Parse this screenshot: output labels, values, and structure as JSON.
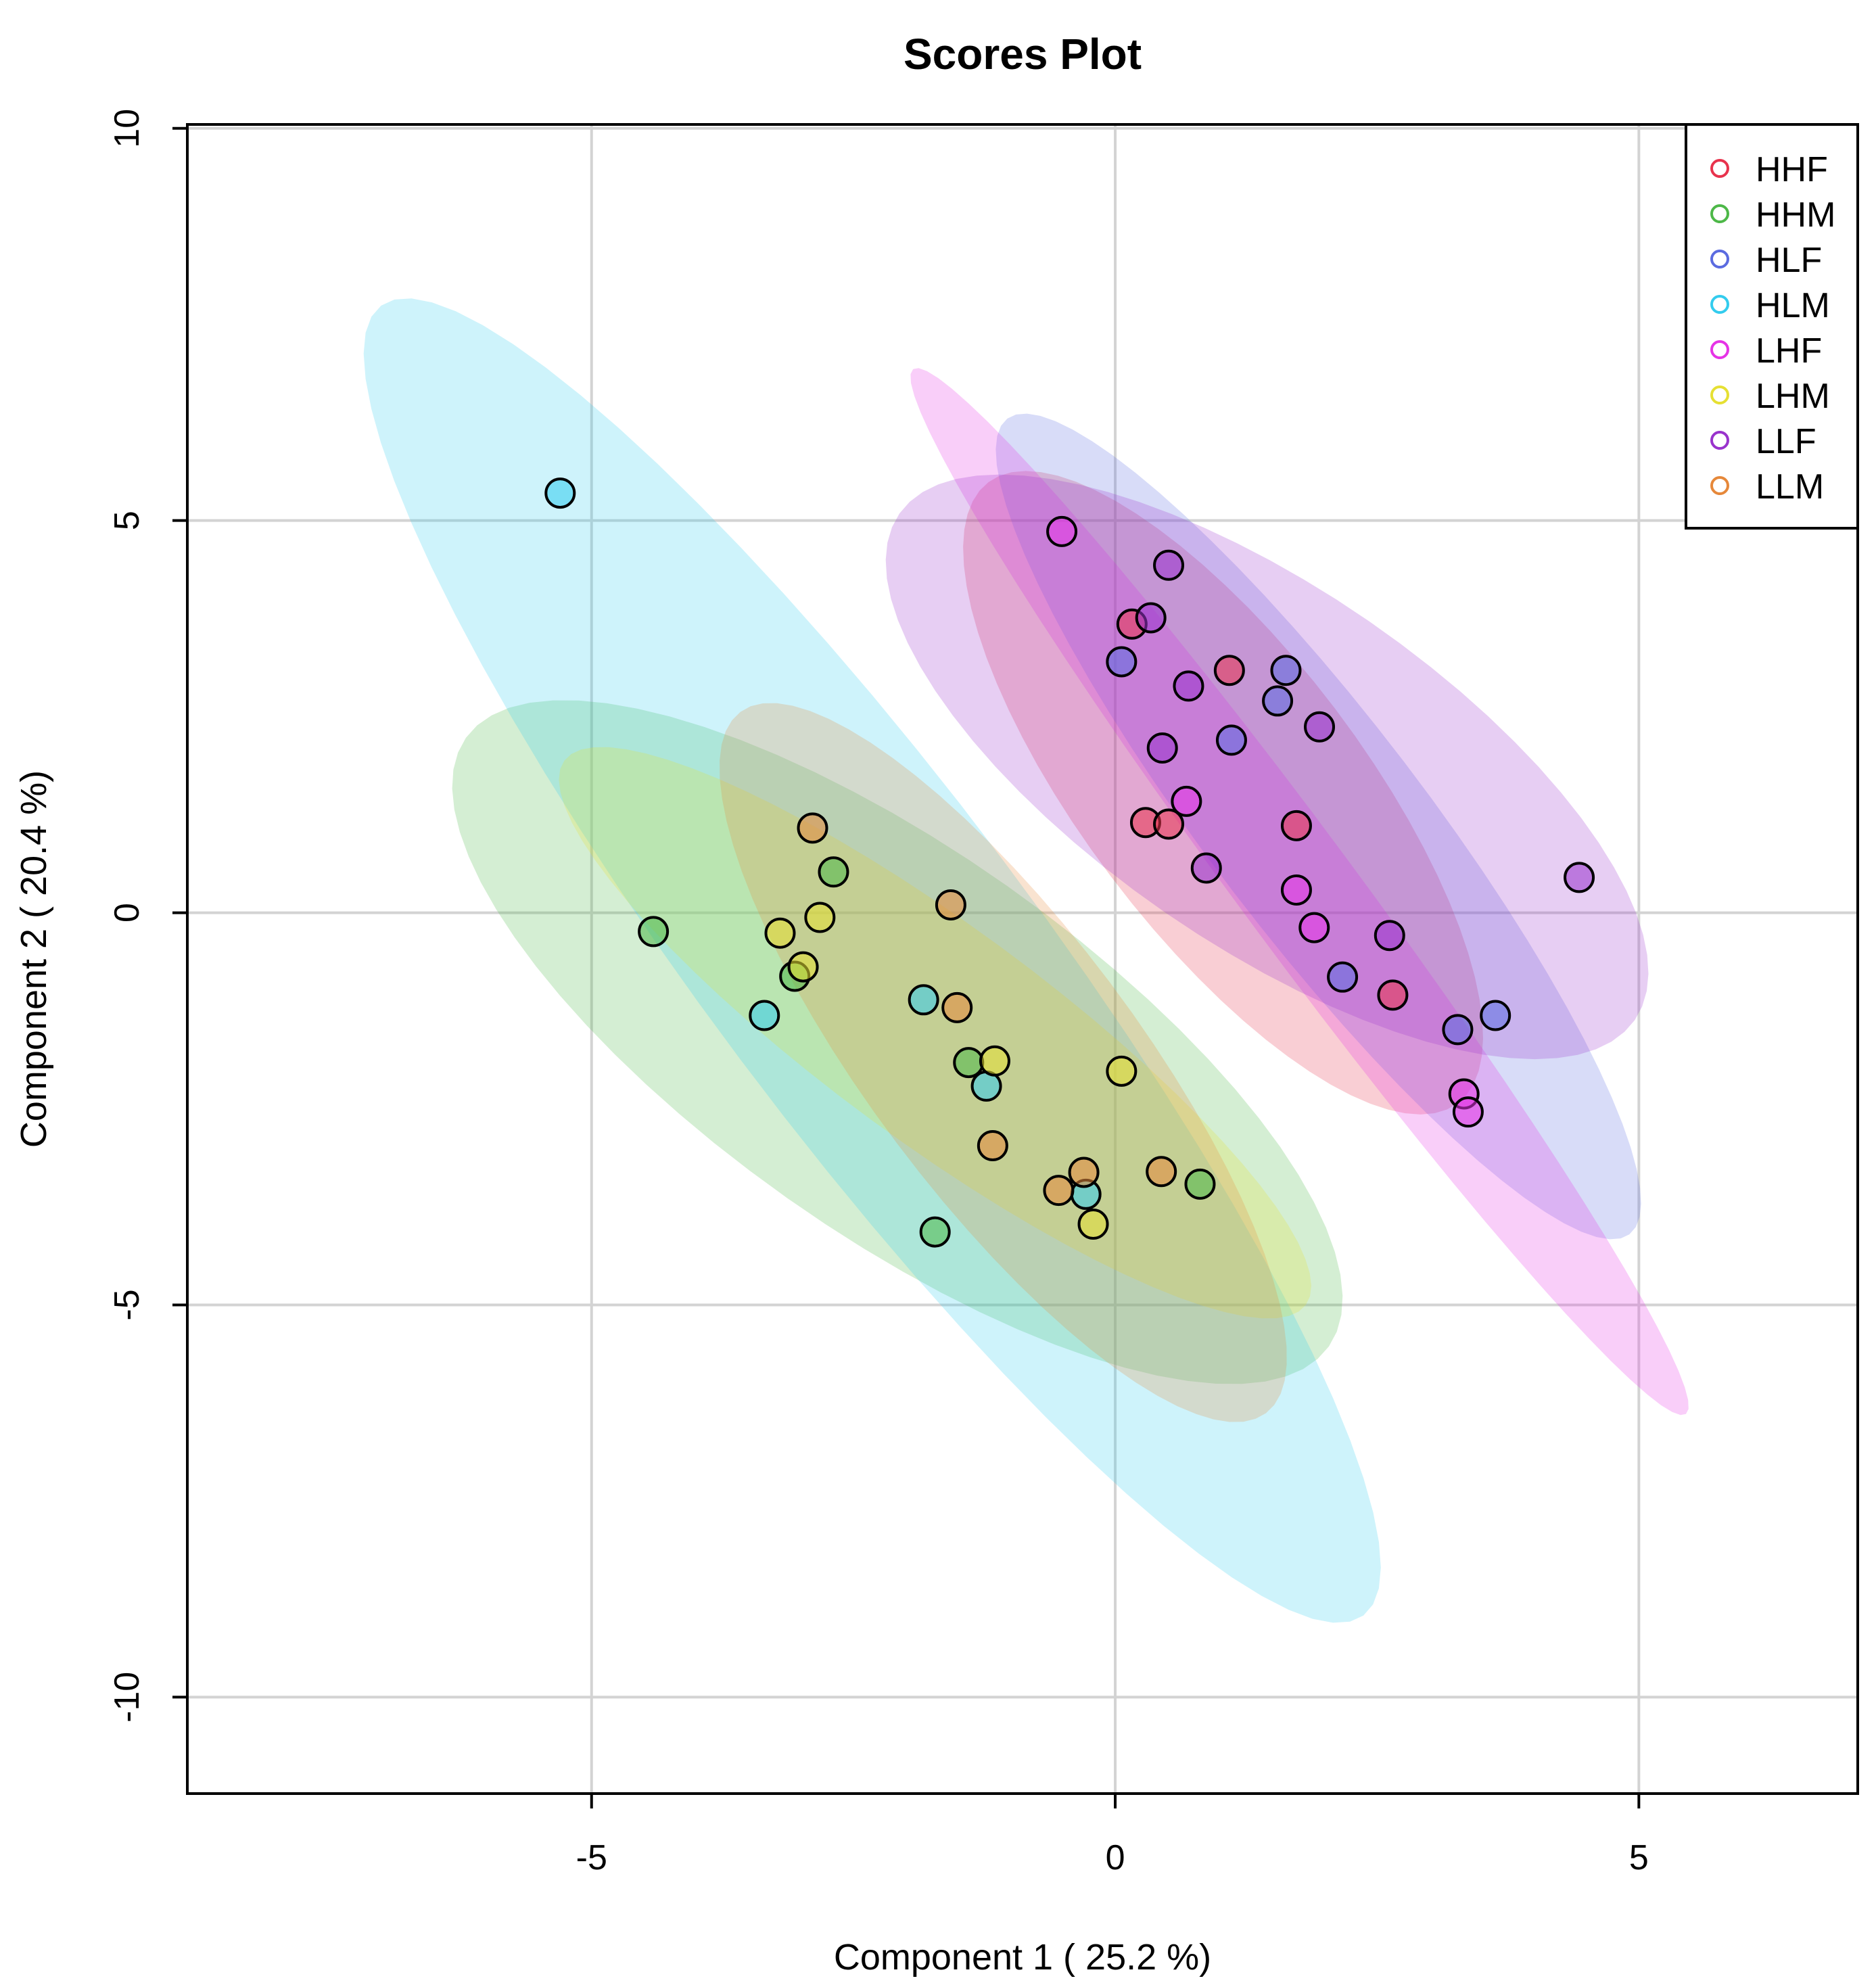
{
  "chart_data": {
    "type": "scatter",
    "title": "Scores Plot",
    "xlabel": "Component 1 ( 25.2 %)",
    "ylabel": "Component 2 ( 20.4 %)",
    "xlim": [
      -8.86,
      7.09
    ],
    "ylim": [
      -11.23,
      10.05
    ],
    "xticks": [
      -5,
      0,
      5
    ],
    "xtick_labels": [
      "-5",
      "0",
      "5"
    ],
    "yticks": [
      -10,
      -5,
      0,
      5,
      10
    ],
    "ytick_labels": [
      "-10",
      "-5",
      "0",
      "5",
      "10"
    ],
    "grid": true,
    "legend_position": "top-right",
    "series": [
      {
        "name": "HHF",
        "color": "#E8334D",
        "points": [
          [
            0.16,
            3.68
          ],
          [
            1.09,
            3.09
          ],
          [
            0.29,
            1.15
          ],
          [
            0.51,
            1.13
          ],
          [
            1.73,
            1.11
          ],
          [
            2.65,
            -1.05
          ]
        ],
        "ellipse": {
          "center": [
            1.03,
            1.53
          ],
          "a": [
            2.24,
            -3.96
          ],
          "b": [
            1.07,
            1.07
          ]
        }
      },
      {
        "name": "HHM",
        "color": "#4DB848",
        "points": [
          [
            -2.69,
            0.52
          ],
          [
            -4.41,
            -0.24
          ],
          [
            -3.06,
            -0.81
          ],
          [
            -1.4,
            -1.91
          ],
          [
            0.81,
            -3.46
          ],
          [
            -1.72,
            -4.07
          ]
        ],
        "ellipse": {
          "center": [
            -2.08,
            -1.65
          ],
          "a": [
            4.12,
            -3.88
          ],
          "b": [
            1.05,
            1.99
          ]
        }
      },
      {
        "name": "HLF",
        "color": "#5B6BE0",
        "points": [
          [
            0.06,
            3.2
          ],
          [
            1.63,
            3.09
          ],
          [
            1.55,
            2.7
          ],
          [
            1.11,
            2.2
          ],
          [
            2.17,
            -0.82
          ],
          [
            3.27,
            -1.49
          ],
          [
            3.63,
            -1.31
          ]
        ],
        "ellipse": {
          "center": [
            1.94,
            1.1
          ],
          "a": [
            2.97,
            -5.2
          ],
          "b": [
            0.82,
            0.82
          ]
        }
      },
      {
        "name": "HLM",
        "color": "#33CCEE",
        "points": [
          [
            -5.3,
            5.35
          ],
          [
            -3.35,
            -1.31
          ],
          [
            -1.83,
            -1.11
          ],
          [
            -1.23,
            -2.21
          ],
          [
            -0.28,
            -3.59
          ]
        ],
        "ellipse": {
          "center": [
            -2.32,
            -0.61
          ],
          "a": [
            4.69,
            -8.35
          ],
          "b": [
            1.26,
            1.26
          ]
        }
      },
      {
        "name": "LHF",
        "color": "#E633E6",
        "points": [
          [
            -0.51,
            4.86
          ],
          [
            0.68,
            1.42
          ],
          [
            1.73,
            0.29
          ],
          [
            1.9,
            -0.19
          ],
          [
            3.33,
            -2.31
          ],
          [
            3.37,
            -2.54
          ]
        ],
        "ellipse": {
          "center": [
            1.76,
            0.27
          ],
          "a": [
            3.69,
            -6.66
          ],
          "b": [
            0.44,
            0.44
          ]
        }
      },
      {
        "name": "LHM",
        "color": "#E6E033",
        "points": [
          [
            -2.82,
            -0.06
          ],
          [
            -3.2,
            -0.26
          ],
          [
            -2.98,
            -0.69
          ],
          [
            -1.15,
            -1.89
          ],
          [
            0.06,
            -2.02
          ],
          [
            -0.21,
            -3.97
          ]
        ],
        "ellipse": {
          "center": [
            -1.72,
            -1.53
          ],
          "a": [
            3.54,
            -3.47
          ],
          "b": [
            0.61,
            1.11
          ]
        }
      },
      {
        "name": "LLF",
        "color": "#9933CC",
        "points": [
          [
            0.51,
            4.43
          ],
          [
            0.34,
            3.76
          ],
          [
            0.7,
            2.89
          ],
          [
            1.95,
            2.37
          ],
          [
            0.45,
            2.1
          ],
          [
            0.87,
            0.57
          ],
          [
            4.43,
            0.45
          ],
          [
            2.62,
            -0.29
          ]
        ],
        "ellipse": {
          "center": [
            1.45,
            1.86
          ],
          "a": [
            3.51,
            -3.23
          ],
          "b": [
            0.97,
            1.86
          ]
        }
      },
      {
        "name": "LLM",
        "color": "#E6883A",
        "points": [
          [
            -2.89,
            1.08
          ],
          [
            -1.57,
            0.1
          ],
          [
            -1.51,
            -1.21
          ],
          [
            -1.17,
            -2.97
          ],
          [
            -0.3,
            -3.31
          ],
          [
            -0.54,
            -3.54
          ],
          [
            0.44,
            -3.3
          ]
        ],
        "ellipse": {
          "center": [
            -1.07,
            -1.91
          ],
          "a": [
            2.51,
            -4.47
          ],
          "b": [
            1.02,
            1.02
          ]
        }
      }
    ]
  }
}
